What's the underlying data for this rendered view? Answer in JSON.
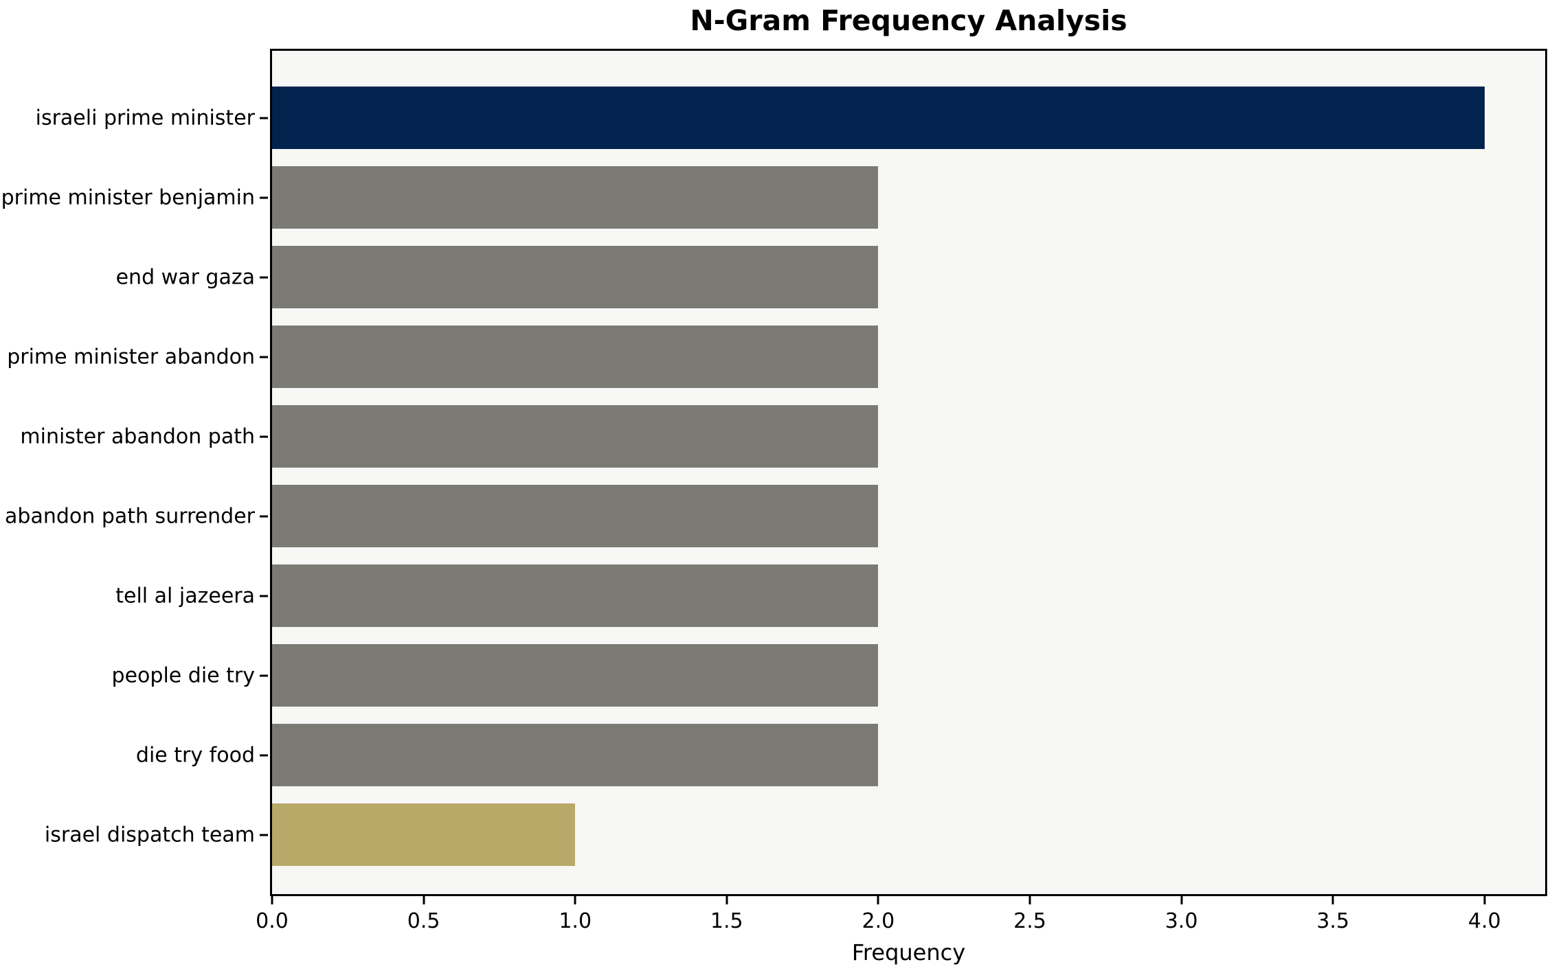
{
  "chart_data": {
    "type": "bar",
    "orientation": "horizontal",
    "title": "N-Gram Frequency Analysis",
    "xlabel": "Frequency",
    "ylabel": "",
    "categories": [
      "israeli prime minister",
      "prime minister benjamin",
      "end war gaza",
      "prime minister abandon",
      "minister abandon path",
      "abandon path surrender",
      "tell al jazeera",
      "people die try",
      "die try food",
      "israel dispatch team"
    ],
    "values": [
      4,
      2,
      2,
      2,
      2,
      2,
      2,
      2,
      2,
      1
    ],
    "bar_colors": [
      "#02234e",
      "#7b7a75",
      "#7b7a75",
      "#7b7a75",
      "#7b7a75",
      "#7b7a75",
      "#7b7a75",
      "#7b7a75",
      "#7b7a75",
      "#b9a969"
    ],
    "xlim": [
      0,
      4.2
    ],
    "x_ticks": [
      "0.0",
      "0.5",
      "1.0",
      "1.5",
      "2.0",
      "2.5",
      "3.0",
      "3.5",
      "4.0"
    ],
    "grid": false,
    "legend_position": "none",
    "plot_background": "#f7f7f6",
    "figure_background": "#ffffff",
    "spine_color": "#000000"
  }
}
